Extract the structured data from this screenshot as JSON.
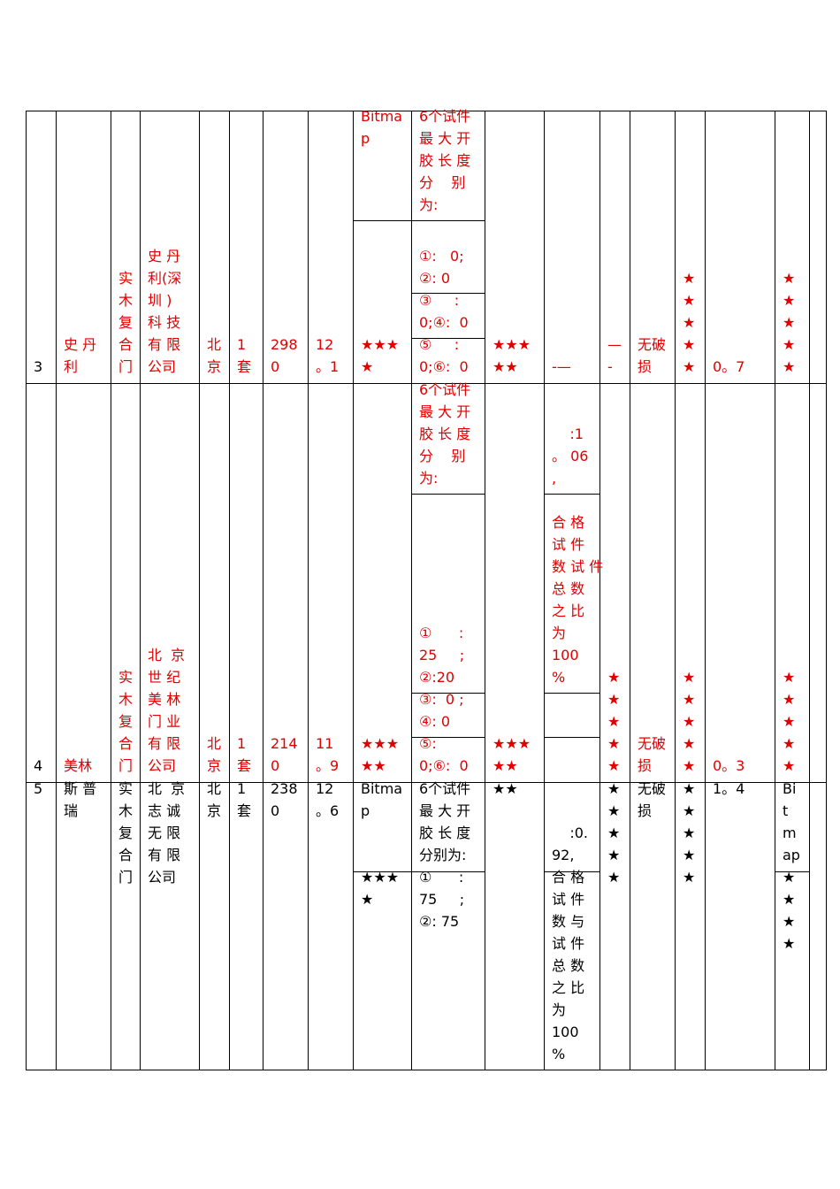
{
  "colors": {
    "highlight": "#e00000",
    "text": "#000000",
    "rule": "#000000"
  },
  "rows": [
    {
      "no": "3",
      "brand": [
        "史 丹",
        "利"
      ],
      "type": [
        "实",
        "木",
        "复",
        "合",
        "门"
      ],
      "company": [
        "史 丹",
        "利(深",
        "圳 )",
        "科 技",
        "有 限",
        "公司"
      ],
      "origin": [
        "北",
        "京"
      ],
      "qty": [
        "1",
        "套"
      ],
      "price": [
        "298",
        "0"
      ],
      "thickness": [
        "12",
        "。1"
      ],
      "c9_top": [
        "Bitma",
        "p"
      ],
      "c9_bottom": [
        "★★★",
        "★"
      ],
      "c10_intro": [
        "6个试件",
        "最 大 开",
        "胶 长 度",
        "分    别",
        "为:"
      ],
      "c10_a": [
        "①:   0;",
        "②: 0"
      ],
      "c10_b": [
        "③     :",
        "0;④:  0"
      ],
      "c10_c": [
        "⑤     :",
        "0;⑥:  0"
      ],
      "c11": [
        "★★★",
        "★★"
      ],
      "c12": [
        "-—"
      ],
      "c13": [
        "—",
        "-"
      ],
      "c14": [
        "无破",
        "损"
      ],
      "c15": [
        "★",
        "★",
        "★",
        "★",
        "★"
      ],
      "c16": [
        "0。7"
      ],
      "c17": [
        "★",
        "★",
        "★",
        "★",
        "★"
      ]
    },
    {
      "no": "4",
      "brand": [
        "美林"
      ],
      "type": [
        "实",
        "木",
        "复",
        "合",
        "门"
      ],
      "company": [
        "北  京",
        "世 纪",
        "美 林",
        "门 业",
        "有 限",
        "公司"
      ],
      "origin": [
        "北",
        "京"
      ],
      "qty": [
        "1",
        "套"
      ],
      "price": [
        "214",
        "0"
      ],
      "thickness": [
        "11",
        "。9"
      ],
      "c9": [
        "★★★",
        "★★"
      ],
      "c10_intro": [
        "6个试件",
        "最 大 开",
        "胶 长 度",
        "分    别",
        "为:"
      ],
      "c10_a": [
        "①      :",
        "25     ;",
        "②:20"
      ],
      "c10_b": [
        "③:  0 ;",
        "④: 0"
      ],
      "c10_c": [
        "⑤:",
        "0;⑥:  0"
      ],
      "c11": [
        "★★★",
        "★★"
      ],
      "c12_top": [
        "    :1",
        "。 06",
        ","
      ],
      "c12_mid": [
        "合 格",
        "试 件",
        "数 试 件",
        "总 数",
        "之 比",
        "为",
        "100",
        "%"
      ],
      "c13": [
        "★",
        "★",
        "★",
        "★",
        "★"
      ],
      "c14": [
        "无破",
        "损"
      ],
      "c15": [
        "★",
        "★",
        "★",
        "★",
        "★"
      ],
      "c16": [
        "0。3"
      ],
      "c17": [
        "★",
        "★",
        "★",
        "★",
        "★"
      ]
    },
    {
      "no": "5",
      "brand": [
        "斯 普",
        "瑞"
      ],
      "type": [
        "实",
        "木",
        "复",
        "合",
        "门"
      ],
      "company": [
        "北  京",
        "志 诚",
        "无 限",
        "有 限",
        "公司"
      ],
      "origin": [
        "北",
        "京"
      ],
      "qty": [
        "1",
        "套"
      ],
      "price": [
        "238",
        "0"
      ],
      "thickness": [
        "12",
        "。6"
      ],
      "c9_top": [
        "Bitma",
        "p"
      ],
      "c9_bottom": [
        "★★★",
        "★"
      ],
      "c10_intro": [
        "6个试件",
        "最 大 开",
        "胶 长 度",
        "分别为:"
      ],
      "c10_a": [
        "①      :",
        "75     ;",
        "②: 75"
      ],
      "c11": [
        "★★"
      ],
      "c12_top": [
        "    :0.",
        "92,"
      ],
      "c12_bottom": [
        "合 格",
        "试 件",
        "数 与",
        "试 件",
        "总 数",
        "之 比",
        "为",
        "100",
        "%"
      ],
      "c13": [
        "★",
        "★",
        "★",
        "★",
        "★"
      ],
      "c14": [
        "无破",
        "损"
      ],
      "c15": [
        "★",
        "★",
        "★",
        "★",
        "★"
      ],
      "c16": [
        "1。4"
      ],
      "c17_top": [
        "Bi",
        "t",
        "m",
        "ap"
      ],
      "c17_bottom": [
        "★",
        "★",
        "★",
        "★"
      ]
    }
  ]
}
